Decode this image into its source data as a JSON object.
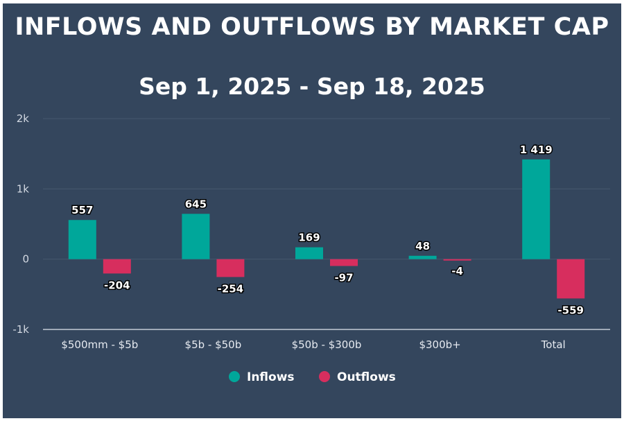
{
  "chart_data": {
    "type": "bar",
    "title": "INFLOWS AND OUTFLOWS BY MARKET CAP",
    "subtitle": "Sep 1, 2025 - Sep 18, 2025",
    "categories": [
      "$500mm - $5b",
      "$5b - $50b",
      "$50b - $300b",
      "$300b+",
      "Total"
    ],
    "series": [
      {
        "name": "Inflows",
        "color": "#00a79a",
        "values": [
          557,
          645,
          169,
          48,
          1419
        ],
        "labels": [
          "557",
          "645",
          "169",
          "48",
          "1 419"
        ]
      },
      {
        "name": "Outflows",
        "color": "#d72e5e",
        "values": [
          -204,
          -254,
          -97,
          -4,
          -559
        ],
        "labels": [
          "-204",
          "-254",
          "-97",
          "-4",
          "-559"
        ]
      }
    ],
    "yticks": [
      {
        "value": 2000,
        "label": "2k"
      },
      {
        "value": 1000,
        "label": "1k"
      },
      {
        "value": 0,
        "label": "0"
      },
      {
        "value": -1000,
        "label": "-1k"
      }
    ],
    "ylim": [
      -1000,
      2000
    ],
    "grid": true,
    "legend_position": "bottom-center",
    "background_color": "#34465d"
  }
}
